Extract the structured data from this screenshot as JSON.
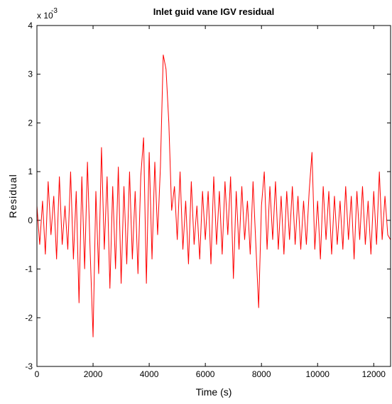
{
  "chart_data": {
    "type": "line",
    "title": "Inlet guid vane IGV residual",
    "xlabel": "Time (s)",
    "ylabel": "Residual",
    "y_multiplier_label": "x 10",
    "y_multiplier_exponent": "-3",
    "xlim": [
      0,
      12600
    ],
    "ylim": [
      -3,
      4
    ],
    "xticks": [
      0,
      2000,
      4000,
      6000,
      8000,
      10000,
      12000
    ],
    "yticks": [
      -3,
      -2,
      -1,
      0,
      1,
      2,
      3,
      4
    ],
    "grid": false,
    "series_color": "#ff0000",
    "series": [
      {
        "x": [
          0,
          100,
          200,
          300,
          400,
          500,
          600,
          700,
          800,
          900,
          1000,
          1100,
          1200,
          1300,
          1400,
          1500,
          1600,
          1700,
          1800,
          1900,
          2000,
          2100,
          2200,
          2300,
          2400,
          2500,
          2600,
          2700,
          2800,
          2900,
          3000,
          3100,
          3200,
          3300,
          3400,
          3500,
          3600,
          3700,
          3800,
          3900,
          4000,
          4100,
          4200,
          4300,
          4400,
          4500,
          4600,
          4700,
          4800,
          4900,
          5000,
          5100,
          5200,
          5300,
          5400,
          5500,
          5600,
          5700,
          5800,
          5900,
          6000,
          6100,
          6200,
          6300,
          6400,
          6500,
          6600,
          6700,
          6800,
          6900,
          7000,
          7100,
          7200,
          7300,
          7400,
          7500,
          7600,
          7700,
          7800,
          7900,
          8000,
          8100,
          8200,
          8300,
          8400,
          8500,
          8600,
          8700,
          8800,
          8900,
          9000,
          9100,
          9200,
          9300,
          9400,
          9500,
          9600,
          9700,
          9800,
          9900,
          10000,
          10100,
          10200,
          10300,
          10400,
          10500,
          10600,
          10700,
          10800,
          10900,
          11000,
          11100,
          11200,
          11300,
          11400,
          11500,
          11600,
          11700,
          11800,
          11900,
          12000,
          12100,
          12200,
          12300,
          12400,
          12500,
          12600
        ],
        "values": [
          0.0003,
          -0.0005,
          0.0004,
          -0.0007,
          0.0008,
          -0.0003,
          0.0005,
          -0.0008,
          0.0009,
          -0.0005,
          0.0003,
          -0.0006,
          0.001,
          -0.0008,
          0.0006,
          -0.0017,
          0.0009,
          -0.001,
          0.0012,
          -0.0007,
          -0.0024,
          0.0006,
          -0.0011,
          0.0015,
          -0.0006,
          0.0009,
          -0.0014,
          0.0007,
          -0.001,
          0.0011,
          -0.0013,
          0.0007,
          -0.0009,
          0.001,
          -0.0008,
          0.0006,
          -0.0011,
          0.0009,
          0.0017,
          -0.0013,
          0.0014,
          -0.0008,
          0.0012,
          -0.0003,
          0.0011,
          0.0034,
          0.0031,
          0.002,
          0.0002,
          0.0007,
          -0.0004,
          0.001,
          -0.0006,
          0.0004,
          -0.0009,
          0.0008,
          -0.0005,
          0.0003,
          -0.0008,
          0.0006,
          -0.0004,
          0.0006,
          -0.0009,
          0.0009,
          -0.0005,
          0.0006,
          -0.0007,
          0.0008,
          -0.0003,
          0.0009,
          -0.0012,
          0.0006,
          -0.0006,
          0.0007,
          -0.0004,
          0.0004,
          -0.0007,
          0.0008,
          -0.0005,
          -0.0018,
          0.0003,
          0.001,
          -0.0006,
          0.0007,
          -0.0004,
          0.0008,
          -0.0006,
          0.0005,
          -0.0007,
          0.0006,
          -0.0004,
          0.0007,
          -0.0005,
          0.0005,
          -0.0006,
          0.0004,
          -0.0005,
          0.0006,
          0.0014,
          -0.0006,
          0.0004,
          -0.0008,
          0.0007,
          -0.0004,
          0.0006,
          -0.0007,
          0.0005,
          -0.0005,
          0.0004,
          -0.0006,
          0.0007,
          -0.0004,
          0.0005,
          -0.0008,
          0.0006,
          -0.0004,
          0.0007,
          -0.0005,
          0.0004,
          -0.0007,
          0.0006,
          -0.0005,
          0.001,
          -0.0004,
          0.0005,
          -0.0003,
          -0.0004
        ]
      }
    ]
  }
}
